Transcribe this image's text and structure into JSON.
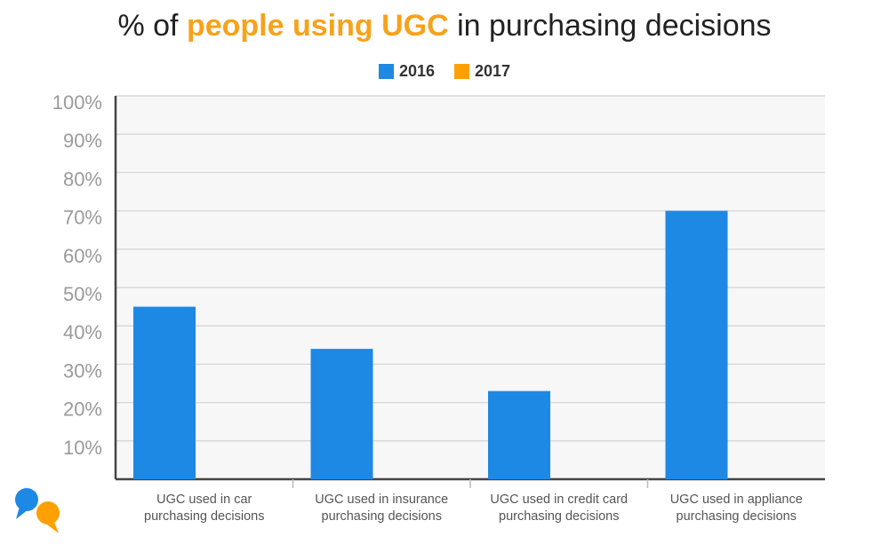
{
  "title": {
    "prefix": "% of",
    "highlight": "people using UGC",
    "suffix": "in purchasing decisions"
  },
  "colors": {
    "s2016": "#1e88e5",
    "s2017": "#ffa000",
    "highlight": "#f7a21b",
    "plot_bg": "#f7f7f7",
    "grid": "#d9d9d9",
    "axis": "#444444",
    "tick_text": "#9a9a9a",
    "cat_text": "#555555"
  },
  "legend": [
    {
      "label": "2016",
      "color": "#1e88e5"
    },
    {
      "label": "2017",
      "color": "#ffa000"
    }
  ],
  "chart_data": {
    "type": "bar",
    "categories": [
      [
        "UGC used in car",
        "purchasing decisions"
      ],
      [
        "UGC used in insurance",
        "purchasing decisions"
      ],
      [
        "UGC used in credit card",
        "purchasing decisions"
      ],
      [
        "UGC used in appliance",
        "purchasing decisions"
      ]
    ],
    "series": [
      {
        "name": "2016",
        "values": [
          45,
          34,
          23,
          70
        ]
      },
      {
        "name": "2017",
        "values": [
          null,
          null,
          null,
          null
        ]
      }
    ],
    "ylim": [
      0,
      100
    ],
    "yticks": [
      "10%",
      "20%",
      "30%",
      "40%",
      "50%",
      "60%",
      "70%",
      "80%",
      "90%",
      "100%"
    ],
    "grid": true,
    "legend_position": "top-center"
  }
}
